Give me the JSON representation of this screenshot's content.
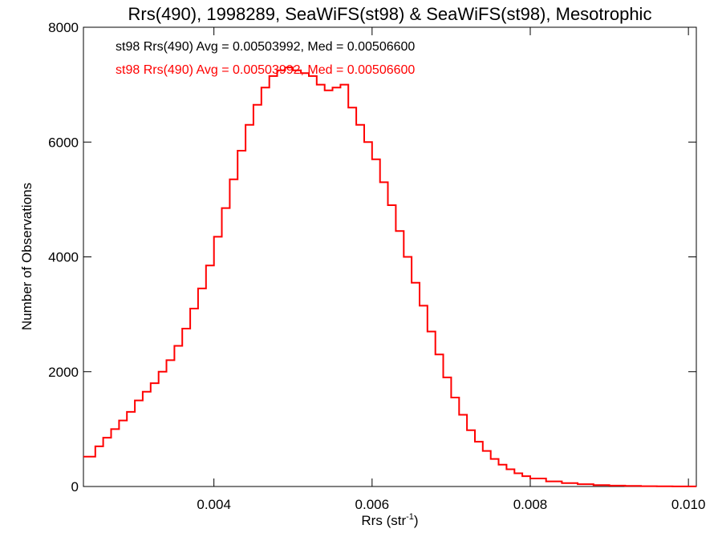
{
  "chart_data": {
    "type": "line",
    "title": "Rrs(490), 1998289, SeaWiFS(st98) & SeaWiFS(st98), Mesotrophic",
    "xlabel": "Rrs (str",
    "xlabel_sup": "-1",
    "xlabel_close": ")",
    "ylabel": "Number of Observations",
    "xlim": [
      0.00235,
      0.0101
    ],
    "ylim": [
      0,
      8000
    ],
    "x_ticks": [
      0.004,
      0.006,
      0.008,
      0.01
    ],
    "x_tick_labels": [
      "0.004",
      "0.006",
      "0.008",
      "0.010"
    ],
    "y_ticks": [
      0,
      2000,
      4000,
      6000,
      8000
    ],
    "y_tick_labels": [
      "0",
      "2000",
      "4000",
      "6000",
      "8000"
    ],
    "grid": false,
    "step": true,
    "annotations": [
      {
        "text": "st98 Rrs(490) Avg = 0.00503992, Med = 0.00506600",
        "color": "#000000"
      },
      {
        "text": "st98 Rrs(490) Avg = 0.00503992, Med = 0.00506600",
        "color": "#ff0000"
      }
    ],
    "series": [
      {
        "color": "#ff0000",
        "x": [
          0.00235,
          0.0025,
          0.0026,
          0.0027,
          0.0028,
          0.0029,
          0.003,
          0.0031,
          0.0032,
          0.0033,
          0.0034,
          0.0035,
          0.0036,
          0.0037,
          0.0038,
          0.0039,
          0.004,
          0.0041,
          0.0042,
          0.0043,
          0.0044,
          0.0045,
          0.0046,
          0.0047,
          0.0048,
          0.0049,
          0.005,
          0.0051,
          0.0052,
          0.0053,
          0.0054,
          0.0055,
          0.0056,
          0.0057,
          0.0058,
          0.0059,
          0.006,
          0.0061,
          0.0062,
          0.0063,
          0.0064,
          0.0065,
          0.0066,
          0.0067,
          0.0068,
          0.0069,
          0.007,
          0.0071,
          0.0072,
          0.0073,
          0.0074,
          0.0075,
          0.0076,
          0.0077,
          0.0078,
          0.0079,
          0.008,
          0.0082,
          0.0084,
          0.0086,
          0.0088,
          0.009,
          0.0092,
          0.0094,
          0.0096,
          0.0098,
          0.0101
        ],
        "y": [
          520,
          700,
          850,
          1000,
          1150,
          1300,
          1500,
          1650,
          1800,
          2000,
          2200,
          2450,
          2750,
          3100,
          3450,
          3850,
          4350,
          4850,
          5350,
          5850,
          6300,
          6650,
          6950,
          7150,
          7250,
          7300,
          7250,
          7200,
          7150,
          7000,
          6900,
          6950,
          7000,
          6600,
          6300,
          6000,
          5700,
          5300,
          4900,
          4450,
          4000,
          3550,
          3150,
          2700,
          2300,
          1900,
          1550,
          1250,
          980,
          780,
          620,
          480,
          380,
          300,
          230,
          180,
          140,
          90,
          60,
          40,
          25,
          15,
          10,
          5,
          3,
          2,
          1
        ]
      }
    ]
  }
}
